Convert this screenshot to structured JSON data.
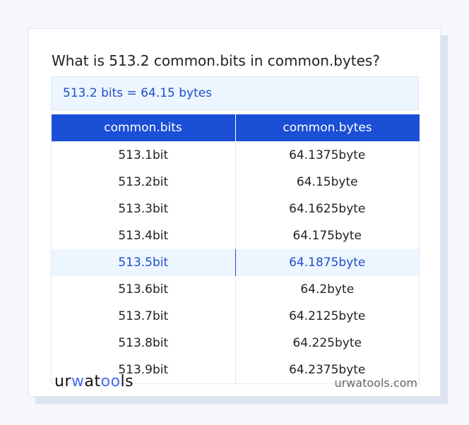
{
  "title": "What is 513.2 common.bits in common.bytes?",
  "result": "513.2 bits = 64.15 bytes",
  "table": {
    "headers": [
      "common.bits",
      "common.bytes"
    ],
    "rows": [
      [
        "513.1bit",
        "64.1375byte"
      ],
      [
        "513.2bit",
        "64.15byte"
      ],
      [
        "513.3bit",
        "64.1625byte"
      ],
      [
        "513.4bit",
        "64.175byte"
      ],
      [
        "513.5bit",
        "64.1875byte"
      ],
      [
        "513.6bit",
        "64.2byte"
      ],
      [
        "513.7bit",
        "64.2125byte"
      ],
      [
        "513.8bit",
        "64.225byte"
      ],
      [
        "513.9bit",
        "64.2375byte"
      ]
    ],
    "highlighted_row": 4
  },
  "footer": {
    "logo": "urwatools",
    "site": "urwatools.com"
  },
  "colors": {
    "accent": "#1a4fd6",
    "highlight_bg": "#edf5fe"
  }
}
